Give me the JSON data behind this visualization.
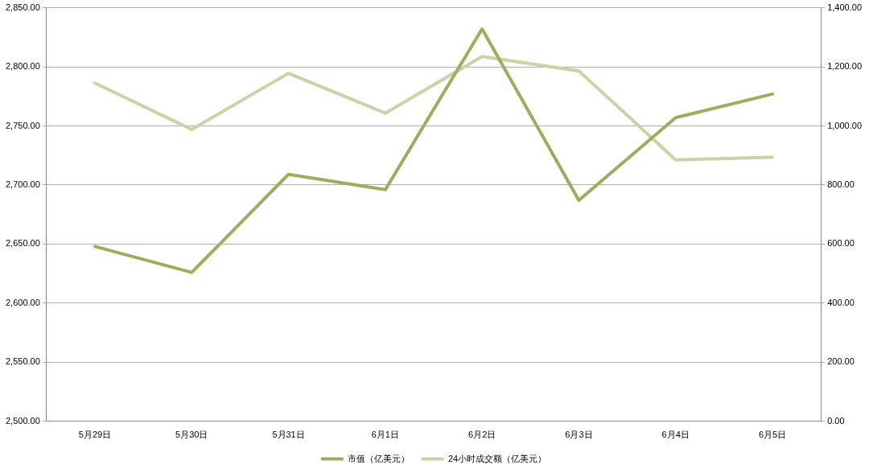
{
  "chart_data": {
    "type": "line",
    "categories": [
      "5月29日",
      "5月30日",
      "5月31日",
      "6月1日",
      "6月2日",
      "6月3日",
      "6月4日",
      "6月5日"
    ],
    "series": [
      {
        "name": "市值（亿美元）",
        "color": "#9bae5e",
        "values": [
          2648,
          2626,
          2709,
          2696,
          2832,
          2687,
          2757,
          2777
        ]
      },
      {
        "name": "24小时成交额（亿美元）",
        "color": "#c5d5a6",
        "axis": "y2",
        "values": [
          1145,
          988,
          1178,
          1043,
          1235,
          1186,
          885,
          894
        ]
      }
    ],
    "ylim": [
      2500,
      2850
    ],
    "yticks": [
      {
        "value": 2500,
        "label": "2,500.00"
      },
      {
        "value": 2550,
        "label": "2,550.00"
      },
      {
        "value": 2600,
        "label": "2,600.00"
      },
      {
        "value": 2650,
        "label": "2,650.00"
      },
      {
        "value": 2700,
        "label": "2,700.00"
      },
      {
        "value": 2750,
        "label": "2,750.00"
      },
      {
        "value": 2800,
        "label": "2,800.00"
      },
      {
        "value": 2850,
        "label": "2,850.00"
      }
    ],
    "y2lim": [
      0,
      1400
    ],
    "y2ticks": [
      {
        "value": 0,
        "label": "0.00"
      },
      {
        "value": 200,
        "label": "200.00"
      },
      {
        "value": 400,
        "label": "400.00"
      },
      {
        "value": 600,
        "label": "600.00"
      },
      {
        "value": 800,
        "label": "800.00"
      },
      {
        "value": 1000,
        "label": "1,000.00"
      },
      {
        "value": 1200,
        "label": "1,200.00"
      },
      {
        "value": 1400,
        "label": "1,400.00"
      }
    ],
    "grid": "y",
    "legend": "bottom",
    "marker": "none",
    "line_style": "solid"
  }
}
